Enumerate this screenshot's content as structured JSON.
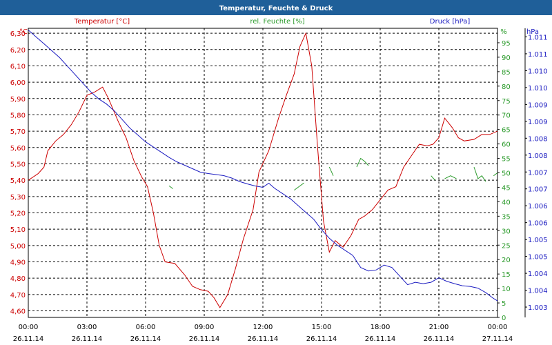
{
  "window": {
    "title": "Temperatur, Feuchte & Druck"
  },
  "chart_data": {
    "type": "line",
    "title": "Temperatur, Feuchte & Druck",
    "legend": {
      "temperature": "Temperatur [°C]",
      "humidity": "rel. Feuchte [%]",
      "pressure": "Druck [hPa]"
    },
    "colors": {
      "temperature": "#cc0000",
      "humidity": "#2a9a2a",
      "pressure": "#1a1ac0",
      "temp_axis": "#cc0000",
      "hum_axis": "#2a9a2a",
      "press_axis": "#1a1ac0"
    },
    "axes": {
      "temperature": {
        "unit": "°C",
        "min": 4.56,
        "max": 6.33,
        "ticks": [
          "6,30",
          "6,20",
          "6,10",
          "6,00",
          "5,90",
          "5,80",
          "5,70",
          "5,60",
          "5,50",
          "5,40",
          "5,30",
          "5,20",
          "5,10",
          "5,00",
          "4,90",
          "4,80",
          "4,70",
          "4,60"
        ]
      },
      "humidity": {
        "unit": "%",
        "min": 0,
        "max": 100,
        "ticks": [
          "95",
          "90",
          "85",
          "80",
          "75",
          "70",
          "65",
          "60",
          "55",
          "50",
          "45",
          "40",
          "35",
          "30",
          "25",
          "20",
          "15",
          "10",
          "5",
          "0"
        ]
      },
      "pressure": {
        "unit": "hPa",
        "min": 1003.0,
        "max": 1011.4,
        "ticks": [
          "1.011",
          "1.011",
          "1.010",
          "1.010",
          "1.009",
          "1.009",
          "1.008",
          "1.008",
          "1.007",
          "1.007",
          "1.006",
          "1.006",
          "1.005",
          "1.005",
          "1.004",
          "1.004",
          "1.003"
        ]
      },
      "x": {
        "min": 0,
        "max": 24,
        "ticks": [
          {
            "time": "00:00",
            "date": "26.11.14"
          },
          {
            "time": "03:00",
            "date": "26.11.14"
          },
          {
            "time": "06:00",
            "date": "26.11.14"
          },
          {
            "time": "09:00",
            "date": "26.11.14"
          },
          {
            "time": "12:00",
            "date": "26.11.14"
          },
          {
            "time": "15:00",
            "date": "26.11.14"
          },
          {
            "time": "18:00",
            "date": "26.11.14"
          },
          {
            "time": "21:00",
            "date": "26.11.14"
          },
          {
            "time": "00:00",
            "date": "27.11.14"
          }
        ]
      }
    },
    "series": [
      {
        "name": "Temperatur",
        "key": "temperature",
        "points": [
          [
            0,
            5.4
          ],
          [
            0.5,
            5.44
          ],
          [
            0.8,
            5.48
          ],
          [
            1.0,
            5.58
          ],
          [
            1.4,
            5.64
          ],
          [
            1.8,
            5.68
          ],
          [
            2.2,
            5.74
          ],
          [
            2.6,
            5.82
          ],
          [
            3.0,
            5.92
          ],
          [
            3.4,
            5.94
          ],
          [
            3.8,
            5.97
          ],
          [
            4.1,
            5.9
          ],
          [
            4.6,
            5.76
          ],
          [
            5.0,
            5.66
          ],
          [
            5.4,
            5.52
          ],
          [
            5.8,
            5.42
          ],
          [
            6.1,
            5.36
          ],
          [
            6.4,
            5.2
          ],
          [
            6.7,
            5.0
          ],
          [
            7.0,
            4.9
          ],
          [
            7.5,
            4.89
          ],
          [
            8.0,
            4.82
          ],
          [
            8.4,
            4.75
          ],
          [
            8.8,
            4.73
          ],
          [
            9.2,
            4.72
          ],
          [
            9.5,
            4.68
          ],
          [
            9.8,
            4.62
          ],
          [
            10.2,
            4.7
          ],
          [
            10.6,
            4.86
          ],
          [
            11.0,
            5.04
          ],
          [
            11.5,
            5.22
          ],
          [
            11.8,
            5.45
          ],
          [
            12.3,
            5.58
          ],
          [
            12.8,
            5.78
          ],
          [
            13.2,
            5.92
          ],
          [
            13.6,
            6.05
          ],
          [
            13.9,
            6.22
          ],
          [
            14.2,
            6.3
          ],
          [
            14.5,
            6.1
          ],
          [
            14.8,
            5.6
          ],
          [
            15.1,
            5.15
          ],
          [
            15.4,
            4.96
          ],
          [
            15.7,
            5.03
          ],
          [
            16.1,
            4.99
          ],
          [
            16.5,
            5.06
          ],
          [
            16.9,
            5.16
          ],
          [
            17.2,
            5.18
          ],
          [
            17.6,
            5.22
          ],
          [
            18.0,
            5.28
          ],
          [
            18.4,
            5.34
          ],
          [
            18.8,
            5.36
          ],
          [
            19.2,
            5.48
          ],
          [
            19.6,
            5.55
          ],
          [
            20.0,
            5.62
          ],
          [
            20.4,
            5.61
          ],
          [
            20.7,
            5.62
          ],
          [
            21.0,
            5.66
          ],
          [
            21.3,
            5.78
          ],
          [
            21.7,
            5.72
          ],
          [
            22.0,
            5.66
          ],
          [
            22.3,
            5.64
          ],
          [
            22.8,
            5.65
          ],
          [
            23.2,
            5.68
          ],
          [
            23.6,
            5.68
          ],
          [
            24.0,
            5.7
          ]
        ]
      },
      {
        "name": "rel. Feuchte",
        "key": "humidity",
        "segments": [
          [
            [
              7.2,
              45.5
            ],
            [
              7.4,
              44.5
            ]
          ],
          [
            [
              13.6,
              44
            ],
            [
              13.9,
              45.5
            ],
            [
              14.1,
              46.5
            ]
          ],
          [
            [
              15.4,
              52
            ],
            [
              15.6,
              49
            ]
          ],
          [
            [
              16.8,
              52
            ],
            [
              17.0,
              55
            ],
            [
              17.2,
              54
            ],
            [
              17.4,
              52.5
            ]
          ],
          [
            [
              20.6,
              49
            ],
            [
              20.8,
              47.5
            ]
          ],
          [
            [
              21.3,
              48
            ],
            [
              21.6,
              49
            ],
            [
              21.9,
              48
            ]
          ],
          [
            [
              22.8,
              52
            ],
            [
              23.0,
              48
            ],
            [
              23.2,
              49
            ],
            [
              23.4,
              47
            ]
          ],
          [
            [
              23.8,
              49
            ],
            [
              24.0,
              50
            ]
          ]
        ]
      },
      {
        "name": "Druck",
        "key": "pressure",
        "points": [
          [
            0,
            1011.35
          ],
          [
            0.4,
            1011.15
          ],
          [
            0.8,
            1010.95
          ],
          [
            1.2,
            1010.75
          ],
          [
            1.6,
            1010.55
          ],
          [
            2.0,
            1010.3
          ],
          [
            2.4,
            1010.05
          ],
          [
            2.8,
            1009.8
          ],
          [
            3.2,
            1009.55
          ],
          [
            3.6,
            1009.35
          ],
          [
            4.0,
            1009.2
          ],
          [
            4.4,
            1009.0
          ],
          [
            4.8,
            1008.75
          ],
          [
            5.2,
            1008.5
          ],
          [
            5.6,
            1008.3
          ],
          [
            6.0,
            1008.1
          ],
          [
            6.4,
            1007.95
          ],
          [
            6.8,
            1007.8
          ],
          [
            7.2,
            1007.65
          ],
          [
            7.6,
            1007.52
          ],
          [
            8.0,
            1007.42
          ],
          [
            8.4,
            1007.32
          ],
          [
            8.8,
            1007.22
          ],
          [
            9.2,
            1007.18
          ],
          [
            9.6,
            1007.15
          ],
          [
            10.0,
            1007.12
          ],
          [
            10.4,
            1007.05
          ],
          [
            10.8,
            1006.95
          ],
          [
            11.2,
            1006.88
          ],
          [
            11.6,
            1006.82
          ],
          [
            12.0,
            1006.78
          ],
          [
            12.3,
            1006.9
          ],
          [
            12.6,
            1006.75
          ],
          [
            13.0,
            1006.6
          ],
          [
            13.4,
            1006.45
          ],
          [
            13.8,
            1006.25
          ],
          [
            14.2,
            1006.05
          ],
          [
            14.6,
            1005.85
          ],
          [
            15.0,
            1005.55
          ],
          [
            15.4,
            1005.3
          ],
          [
            15.8,
            1005.1
          ],
          [
            16.2,
            1004.95
          ],
          [
            16.6,
            1004.8
          ],
          [
            17.0,
            1004.45
          ],
          [
            17.4,
            1004.35
          ],
          [
            17.8,
            1004.38
          ],
          [
            18.2,
            1004.52
          ],
          [
            18.6,
            1004.45
          ],
          [
            19.0,
            1004.2
          ],
          [
            19.4,
            1003.95
          ],
          [
            19.8,
            1004.02
          ],
          [
            20.2,
            1003.98
          ],
          [
            20.6,
            1004.02
          ],
          [
            21.0,
            1004.15
          ],
          [
            21.4,
            1004.05
          ],
          [
            21.8,
            1003.98
          ],
          [
            22.2,
            1003.92
          ],
          [
            22.6,
            1003.9
          ],
          [
            23.0,
            1003.85
          ],
          [
            23.4,
            1003.72
          ],
          [
            23.8,
            1003.55
          ],
          [
            24.0,
            1003.48
          ]
        ]
      }
    ],
    "grid": true
  }
}
